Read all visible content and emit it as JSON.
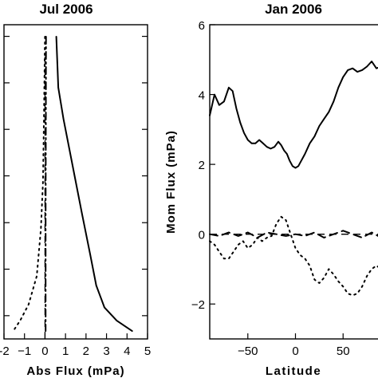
{
  "chart_data": [
    {
      "type": "line",
      "title": "Jul 2006",
      "xlabel": "Abs Flux (mPa)",
      "ylabel": "",
      "xlim": [
        -2,
        5
      ],
      "ylim": [
        0,
        1
      ],
      "x_ticks": [
        -2,
        -1,
        0,
        1,
        2,
        3,
        4,
        5
      ],
      "x_tick_labels": [
        "-2",
        "−1",
        "0",
        "1",
        "2",
        "3",
        "4",
        "5"
      ],
      "y_tick_labels": [],
      "y_ticks": [
        0.074,
        0.222,
        0.37,
        0.519,
        0.667,
        0.815,
        0.963
      ],
      "reference_lines": [
        {
          "axis": "x",
          "value": 0,
          "style": "dashed"
        }
      ],
      "series": [
        {
          "style": "solid",
          "points": [
            [
              0.55,
              0.962
            ],
            [
              0.65,
              0.8
            ],
            [
              0.9,
              0.7
            ],
            [
              1.2,
              0.6
            ],
            [
              1.5,
              0.5
            ],
            [
              1.8,
              0.4
            ],
            [
              2.2,
              0.27
            ],
            [
              2.5,
              0.17
            ],
            [
              2.9,
              0.1
            ],
            [
              3.5,
              0.058
            ],
            [
              4.25,
              0.025
            ]
          ]
        },
        {
          "style": "dotted",
          "points": [
            [
              0.0,
              0.962
            ],
            [
              -0.05,
              0.7
            ],
            [
              -0.1,
              0.5
            ],
            [
              -0.2,
              0.35
            ],
            [
              -0.4,
              0.2
            ],
            [
              -0.8,
              0.11
            ],
            [
              -1.2,
              0.06
            ],
            [
              -1.55,
              0.025
            ]
          ]
        },
        {
          "style": "dashdot",
          "points": [
            [
              0.05,
              0.962
            ],
            [
              0.04,
              0.7
            ],
            [
              0.03,
              0.4
            ],
            [
              0.03,
              0.1
            ],
            [
              0.03,
              0.025
            ]
          ]
        }
      ]
    },
    {
      "type": "line",
      "title": "Jan 2006",
      "xlabel": "Latitude",
      "ylabel": "Mom Flux (mPa)",
      "xlim": [
        -90,
        90
      ],
      "ylim": [
        -3,
        6
      ],
      "x_ticks": [
        -50,
        0,
        50
      ],
      "x_tick_labels": [
        "−50",
        "0",
        "50"
      ],
      "y_ticks": [
        -2,
        0,
        2,
        4,
        6
      ],
      "y_tick_labels": [
        "−2",
        "0",
        "2",
        "4",
        "6"
      ],
      "reference_lines": [
        {
          "axis": "y",
          "value": 0,
          "style": "dashed"
        }
      ],
      "series": [
        {
          "style": "solid",
          "x": [
            -90,
            -85,
            -80,
            -75,
            -70,
            -66,
            -62,
            -58,
            -54,
            -50,
            -46,
            -42,
            -38,
            -34,
            -30,
            -26,
            -22,
            -18,
            -15,
            -12,
            -9,
            -6,
            -3,
            0,
            3,
            6,
            10,
            15,
            20,
            25,
            30,
            35,
            40,
            45,
            50,
            55,
            60,
            65,
            70,
            75,
            80,
            85,
            90
          ],
          "y": [
            3.4,
            4.0,
            3.7,
            3.8,
            4.2,
            4.1,
            3.6,
            3.2,
            2.9,
            2.7,
            2.6,
            2.6,
            2.7,
            2.6,
            2.5,
            2.45,
            2.5,
            2.65,
            2.55,
            2.4,
            2.3,
            2.1,
            1.95,
            1.9,
            1.95,
            2.1,
            2.3,
            2.6,
            2.8,
            3.1,
            3.3,
            3.5,
            3.8,
            4.2,
            4.5,
            4.7,
            4.75,
            4.65,
            4.7,
            4.8,
            4.95,
            4.75,
            4.8
          ]
        },
        {
          "style": "dashed",
          "x": [
            -90,
            -80,
            -70,
            -60,
            -50,
            -40,
            -30,
            -20,
            -10,
            0,
            10,
            20,
            30,
            40,
            50,
            60,
            70,
            80,
            90
          ],
          "y": [
            0.0,
            -0.05,
            0.05,
            -0.05,
            0.05,
            -0.1,
            0.05,
            0.0,
            -0.05,
            0.0,
            -0.05,
            0.05,
            -0.1,
            0.0,
            0.1,
            0.0,
            -0.1,
            0.05,
            -0.1
          ]
        },
        {
          "style": "dotted",
          "x": [
            -90,
            -85,
            -80,
            -75,
            -70,
            -65,
            -60,
            -55,
            -50,
            -45,
            -40,
            -35,
            -30,
            -25,
            -20,
            -15,
            -10,
            -5,
            0,
            5,
            10,
            15,
            20,
            25,
            30,
            35,
            40,
            45,
            50,
            55,
            60,
            65,
            70,
            75,
            80,
            85,
            90
          ],
          "y": [
            -0.2,
            -0.3,
            -0.5,
            -0.7,
            -0.7,
            -0.5,
            -0.3,
            -0.2,
            -0.4,
            -0.3,
            -0.1,
            -0.2,
            -0.1,
            -0.05,
            0.3,
            0.5,
            0.4,
            0.0,
            -0.4,
            -0.6,
            -0.7,
            -0.9,
            -1.3,
            -1.4,
            -1.25,
            -1.0,
            -1.15,
            -1.35,
            -1.5,
            -1.7,
            -1.75,
            -1.7,
            -1.5,
            -1.2,
            -1.0,
            -0.9,
            -1.0
          ]
        }
      ]
    }
  ]
}
